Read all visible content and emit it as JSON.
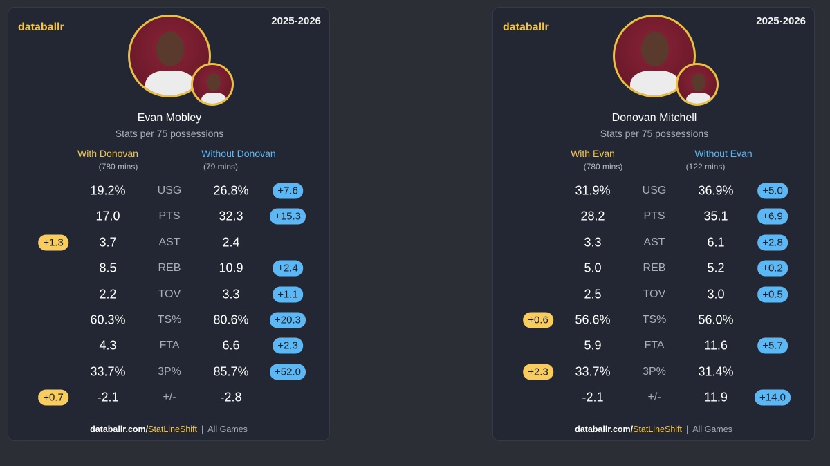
{
  "cards": [
    {
      "brand": "databallr",
      "season": "2025-2026",
      "player": "Evan Mobley",
      "subtitle": "Stats per 75 possessions",
      "with_label": "With Donovan",
      "with_mins": "(780 mins)",
      "without_label": "Without Donovan",
      "without_mins": "(79 mins)",
      "rows": [
        {
          "with": "19.2%",
          "stat": "USG",
          "without": "26.8%",
          "without_diff": "+7.6"
        },
        {
          "with": "17.0",
          "stat": "PTS",
          "without": "32.3",
          "without_diff": "+15.3"
        },
        {
          "with_diff": "+1.3",
          "with": "3.7",
          "stat": "AST",
          "without": "2.4"
        },
        {
          "with": "8.5",
          "stat": "REB",
          "without": "10.9",
          "without_diff": "+2.4"
        },
        {
          "with": "2.2",
          "stat": "TOV",
          "without": "3.3",
          "without_diff": "+1.1"
        },
        {
          "with": "60.3%",
          "stat": "TS%",
          "without": "80.6%",
          "without_diff": "+20.3"
        },
        {
          "with": "4.3",
          "stat": "FTA",
          "without": "6.6",
          "without_diff": "+2.3"
        },
        {
          "with": "33.7%",
          "stat": "3P%",
          "without": "85.7%",
          "without_diff": "+52.0"
        },
        {
          "with_diff": "+0.7",
          "with": "-2.1",
          "stat": "+/-",
          "without": "-2.8"
        }
      ],
      "footer": {
        "site": "databallr.com/",
        "link": "StatLineShift",
        "separator": "|",
        "scope": "All Games"
      }
    },
    {
      "brand": "databallr",
      "season": "2025-2026",
      "player": "Donovan Mitchell",
      "subtitle": "Stats per 75 possessions",
      "with_label": "With Evan",
      "with_mins": "(780 mins)",
      "without_label": "Without Evan",
      "without_mins": "(122 mins)",
      "rows": [
        {
          "with": "31.9%",
          "stat": "USG",
          "without": "36.9%",
          "without_diff": "+5.0"
        },
        {
          "with": "28.2",
          "stat": "PTS",
          "without": "35.1",
          "without_diff": "+6.9"
        },
        {
          "with": "3.3",
          "stat": "AST",
          "without": "6.1",
          "without_diff": "+2.8"
        },
        {
          "with": "5.0",
          "stat": "REB",
          "without": "5.2",
          "without_diff": "+0.2"
        },
        {
          "with": "2.5",
          "stat": "TOV",
          "without": "3.0",
          "without_diff": "+0.5"
        },
        {
          "with_diff": "+0.6",
          "with": "56.6%",
          "stat": "TS%",
          "without": "56.0%"
        },
        {
          "with": "5.9",
          "stat": "FTA",
          "without": "11.6",
          "without_diff": "+5.7"
        },
        {
          "with_diff": "+2.3",
          "with": "33.7%",
          "stat": "3P%",
          "without": "31.4%"
        },
        {
          "with": "-2.1",
          "stat": "+/-",
          "without": "11.9",
          "without_diff": "+14.0"
        }
      ],
      "footer": {
        "site": "databallr.com/",
        "link": "StatLineShift",
        "separator": "|",
        "scope": "All Games"
      }
    }
  ]
}
